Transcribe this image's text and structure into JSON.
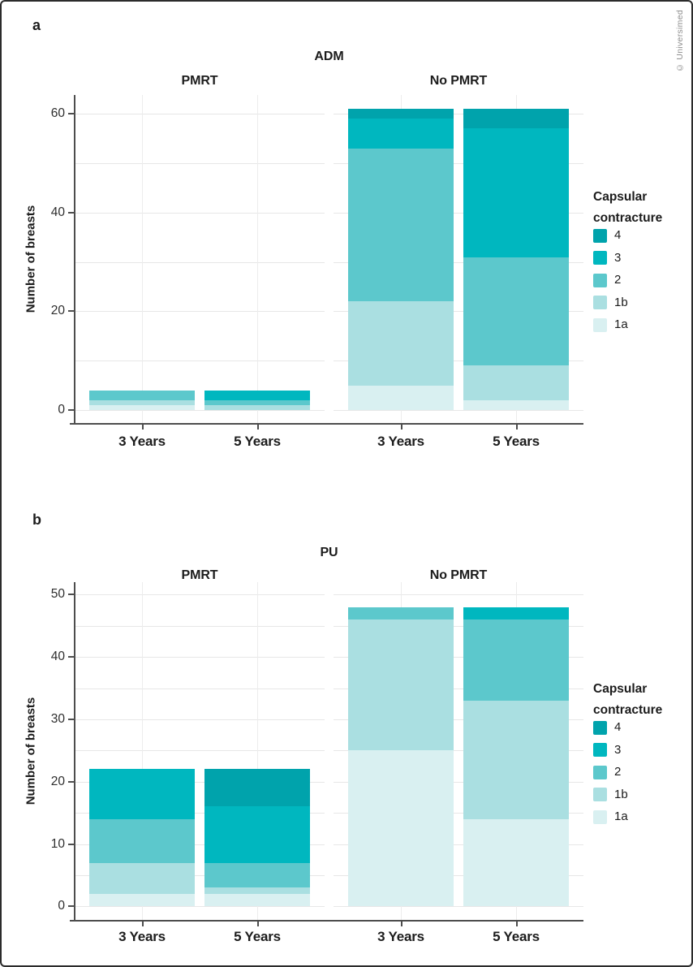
{
  "copyright": "© Universimed",
  "colors": {
    "grade_4": "#00a3ac",
    "grade_3": "#00b7bf",
    "grade_2": "#5cc8cc",
    "grade_1b": "#aadfe1",
    "grade_1a": "#d9f0f1",
    "axis": "#4d4d4d",
    "gridline": "#e7e7e7",
    "text": "#1c1c1c",
    "copyright_text": "#8c8c8c"
  },
  "legend": {
    "title_lines": [
      "Capsular",
      "contracture"
    ],
    "items": [
      {
        "grade": "4"
      },
      {
        "grade": "3"
      },
      {
        "grade": "2"
      },
      {
        "grade": "1b"
      },
      {
        "grade": "1a"
      }
    ]
  },
  "chart_data": [
    {
      "type": "bar",
      "stacked": true,
      "panel_label": "a",
      "title": "ADM",
      "ylabel": "Number of breasts",
      "xlabel": "",
      "legend_title": "Capsular contracture",
      "legend_position": "right",
      "grid": true,
      "categories": [
        "3 Years",
        "5 Years"
      ],
      "stack_order_bottom_to_top": [
        "1a",
        "1b",
        "2",
        "3",
        "4"
      ],
      "yticks": [
        0,
        20,
        40,
        60
      ],
      "gridline_step": 10,
      "ylim": [
        0,
        64
      ],
      "facets": [
        {
          "label": "PMRT",
          "bars": [
            {
              "category": "3 Years",
              "segments": {
                "1a": 1,
                "1b": 1,
                "2": 2,
                "3": 0,
                "4": 0
              },
              "total": 4
            },
            {
              "category": "5 Years",
              "segments": {
                "1a": 0,
                "1b": 1,
                "2": 1,
                "3": 2,
                "4": 0
              },
              "total": 4
            }
          ]
        },
        {
          "label": "No PMRT",
          "bars": [
            {
              "category": "3 Years",
              "segments": {
                "1a": 5,
                "1b": 17,
                "2": 31,
                "3": 6,
                "4": 2
              },
              "total": 61
            },
            {
              "category": "5 Years",
              "segments": {
                "1a": 2,
                "1b": 7,
                "2": 22,
                "3": 26,
                "4": 4
              },
              "total": 61
            }
          ]
        }
      ]
    },
    {
      "type": "bar",
      "stacked": true,
      "panel_label": "b",
      "title": "PU",
      "ylabel": "Number of breasts",
      "xlabel": "",
      "legend_title": "Capsular contracture",
      "legend_position": "right",
      "grid": true,
      "categories": [
        "3 Years",
        "5 Years"
      ],
      "stack_order_bottom_to_top": [
        "1a",
        "1b",
        "2",
        "3",
        "4"
      ],
      "yticks": [
        0,
        10,
        20,
        30,
        40,
        50
      ],
      "gridline_step": 5,
      "ylim": [
        0,
        52
      ],
      "facets": [
        {
          "label": "PMRT",
          "bars": [
            {
              "category": "3 Years",
              "segments": {
                "1a": 2,
                "1b": 5,
                "2": 7,
                "3": 8,
                "4": 0
              },
              "total": 22
            },
            {
              "category": "5 Years",
              "segments": {
                "1a": 2,
                "1b": 1,
                "2": 4,
                "3": 9,
                "4": 6
              },
              "total": 22
            }
          ]
        },
        {
          "label": "No PMRT",
          "bars": [
            {
              "category": "3 Years",
              "segments": {
                "1a": 25,
                "1b": 21,
                "2": 2,
                "3": 0,
                "4": 0
              },
              "total": 48
            },
            {
              "category": "5 Years",
              "segments": {
                "1a": 14,
                "1b": 19,
                "2": 13,
                "3": 2,
                "4": 0
              },
              "total": 48
            }
          ]
        }
      ]
    }
  ]
}
